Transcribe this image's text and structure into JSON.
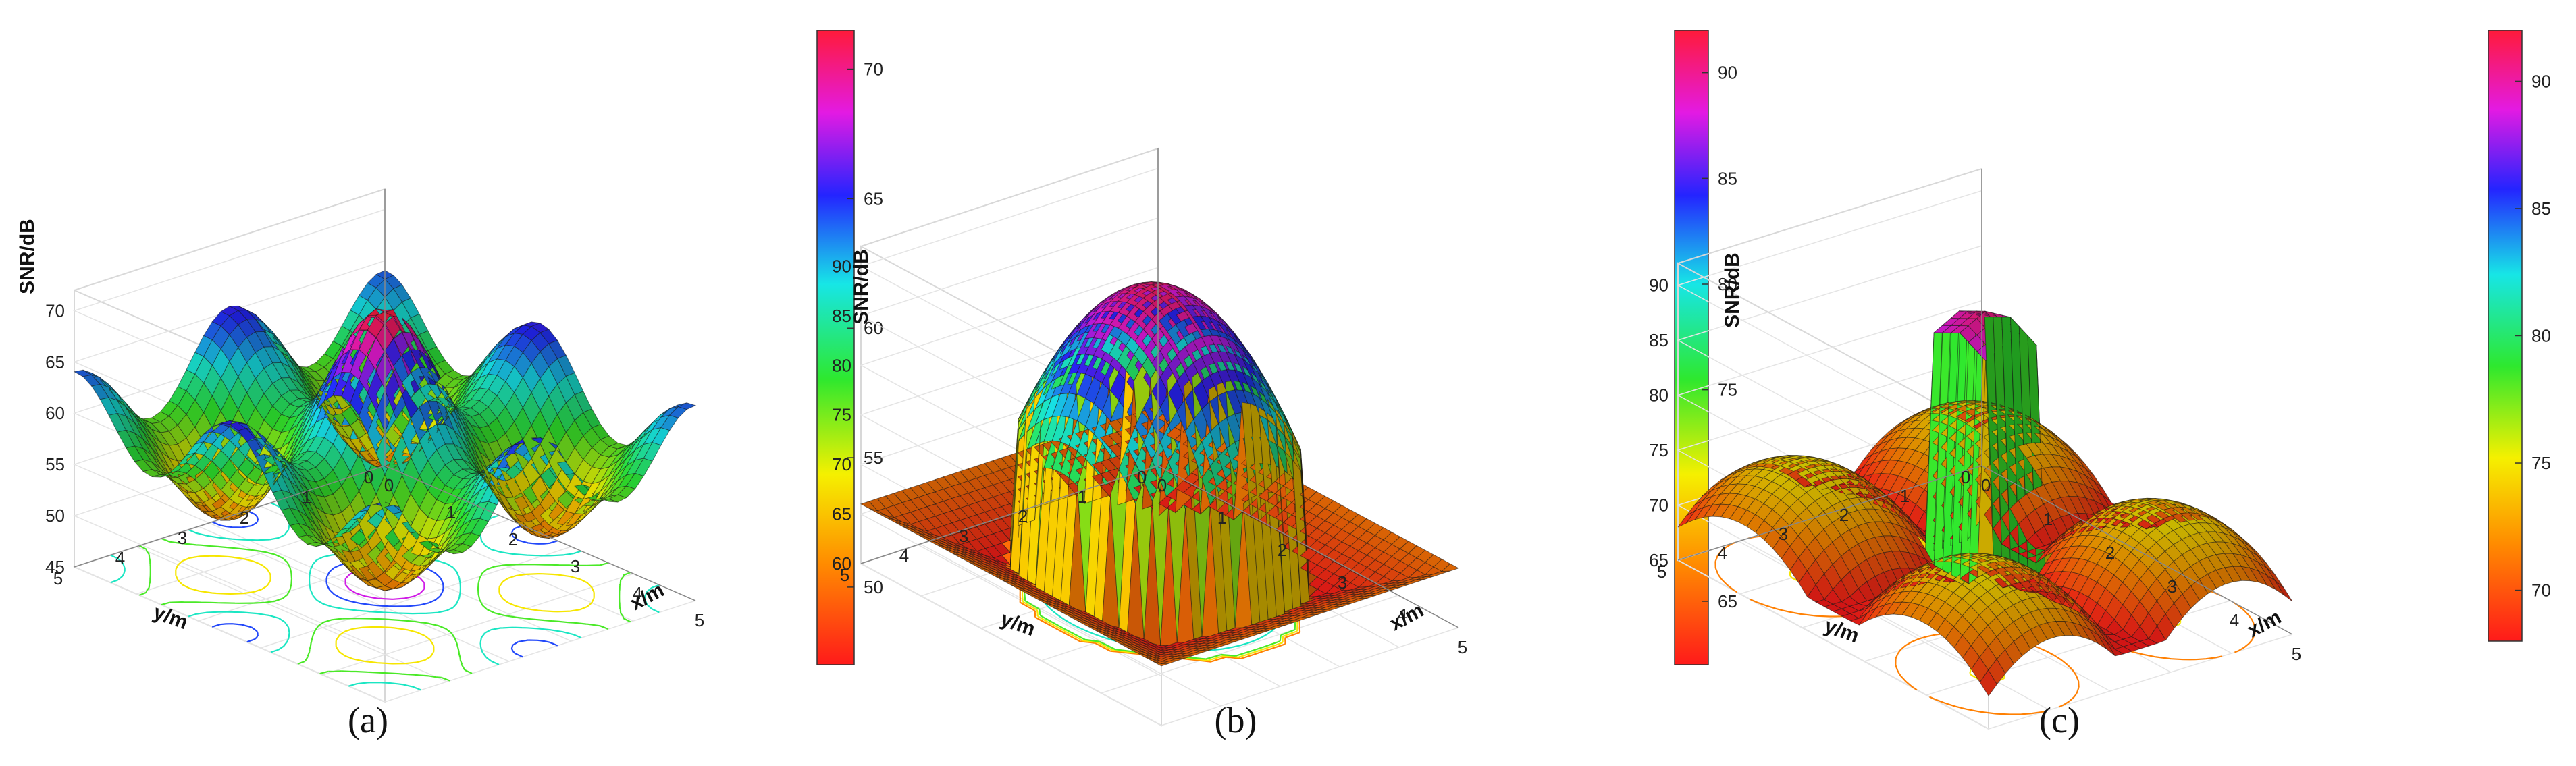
{
  "chart_data": [
    {
      "type": "surface",
      "caption": "(a)",
      "xlabel": "x/m",
      "ylabel": "y/m",
      "zlabel": "SNR/dB",
      "xlim": [
        0,
        5
      ],
      "ylim": [
        0,
        5
      ],
      "zlim": [
        45,
        72
      ],
      "x_ticks": [
        "0",
        "1",
        "2",
        "3",
        "4",
        "5"
      ],
      "y_ticks": [
        "0",
        "1",
        "2",
        "3",
        "4",
        "5"
      ],
      "z_ticks": [
        45,
        50,
        55,
        60,
        65,
        70
      ],
      "colorbar_range": [
        47,
        71.5
      ],
      "colorbar_ticks": [
        50,
        55,
        60,
        65,
        70
      ],
      "colormap": "hsv (red-yellow-green-cyan-blue-magenta-red)",
      "surface_summary": {
        "center_peak": 71,
        "corner_value": 58,
        "min_value": 47,
        "contour_projection": true
      }
    },
    {
      "type": "surface",
      "caption": "(b)",
      "xlabel": "x/m",
      "ylabel": "y/m",
      "zlabel": "SNR/dB",
      "xlim": [
        0,
        5
      ],
      "ylim": [
        0,
        5
      ],
      "zlim": [
        60,
        92
      ],
      "x_ticks": [
        "0",
        "1",
        "2",
        "3",
        "4",
        "5"
      ],
      "y_ticks": [
        "0",
        "1",
        "2",
        "3",
        "4",
        "5"
      ],
      "z_ticks": [
        60,
        65,
        70,
        75,
        80,
        85,
        90
      ],
      "colorbar_range": [
        62,
        92
      ],
      "colorbar_ticks": [
        65,
        70,
        75,
        80,
        85,
        90
      ],
      "colormap": "hsv (red-yellow-green-cyan-blue-magenta-red)",
      "surface_summary": {
        "center_peak": 91,
        "edge_dome_peak": 66,
        "min_value": 60,
        "contour_projection": true
      }
    },
    {
      "type": "surface",
      "caption": "(c)",
      "xlabel": "x/m",
      "ylabel": "y/m",
      "zlabel": "SNR/dB",
      "xlim": [
        0,
        5
      ],
      "ylim": [
        0,
        5
      ],
      "zlim": [
        65,
        92
      ],
      "x_ticks": [
        "0",
        "1",
        "2",
        "3",
        "4",
        "5"
      ],
      "y_ticks": [
        "0",
        "1",
        "2",
        "3",
        "4",
        "5"
      ],
      "z_ticks": [
        65,
        70,
        75,
        80,
        85,
        90
      ],
      "colorbar_range": [
        68,
        92
      ],
      "colorbar_ticks": [
        70,
        75,
        80,
        85,
        90
      ],
      "colormap": "hsv (red-yellow-green-cyan-blue-magenta-red)",
      "surface_summary": {
        "center_peak": 91,
        "corner_dome_peak": 75,
        "min_value": 68,
        "contour_projection": true
      }
    }
  ]
}
